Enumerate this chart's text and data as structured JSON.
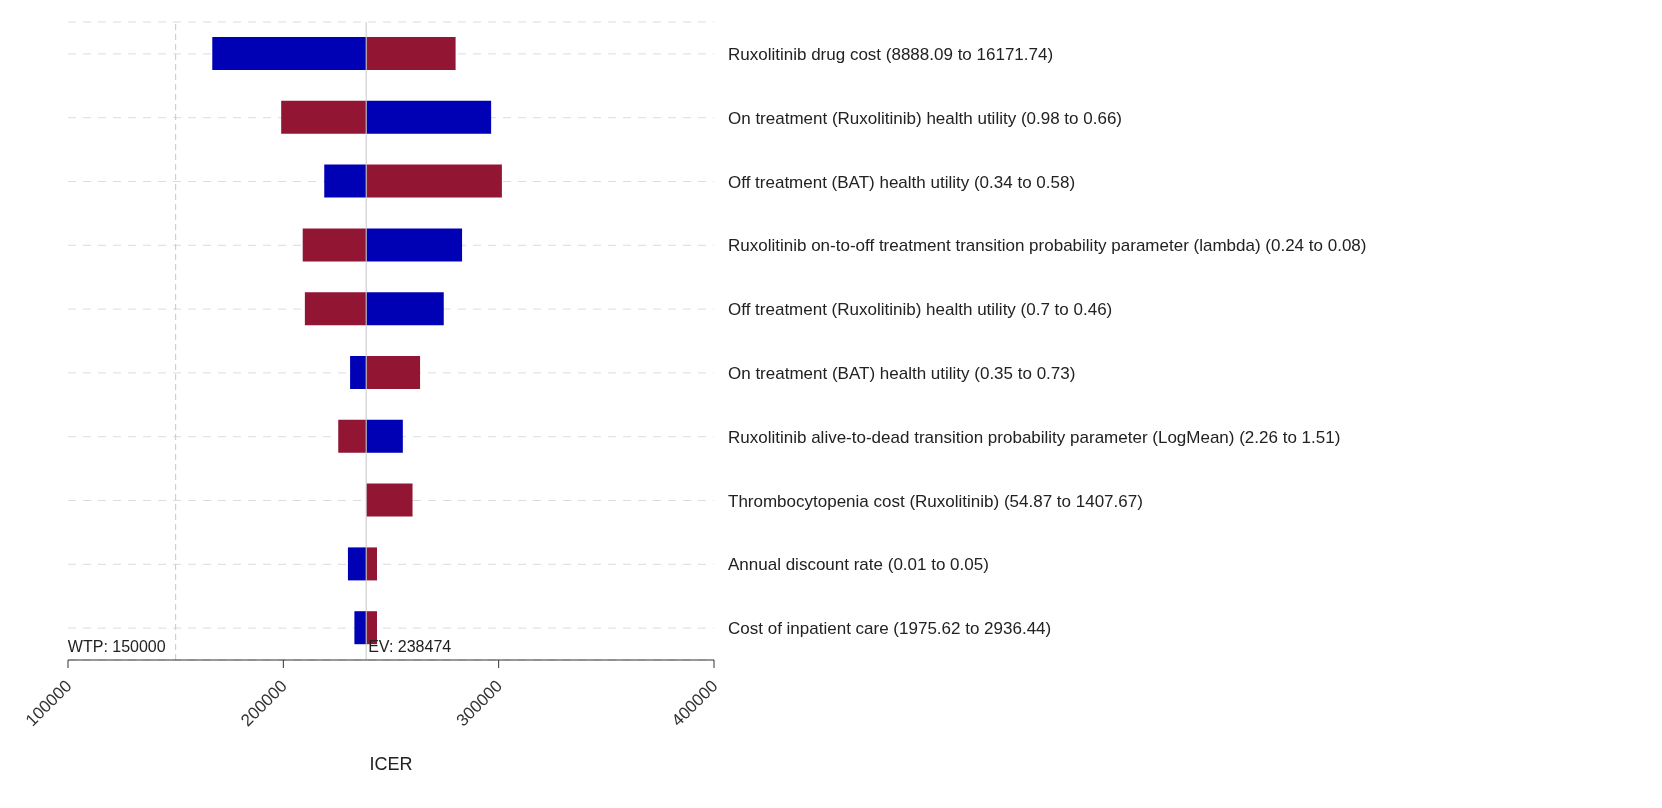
{
  "chart_data": {
    "type": "bar",
    "orientation": "horizontal",
    "xlabel": "ICER",
    "categories": [
      "Ruxolitinib drug cost (8888.09 to 16171.74)",
      "On treatment (Ruxolitinib) health utility (0.98 to 0.66)",
      "Off treatment (BAT) health utility (0.34 to 0.58)",
      "Ruxolitinib on-to-off treatment transition probability parameter (lambda) (0.24 to 0.08)",
      "Off treatment (Ruxolitinib) health utility (0.7 to 0.46)",
      "On treatment (BAT) health utility (0.35 to 0.73)",
      "Ruxolitinib alive-to-dead transition probability parameter (LogMean) (2.26 to 1.51)",
      "Thrombocytopenia cost (Ruxolitinib) (54.87 to 1407.67)",
      "Annual discount rate (0.01 to 0.05)",
      "Cost of inpatient care (1975.62 to 2936.44)"
    ],
    "series": [
      {
        "color": "#0000b4",
        "base": [
          167000,
          238500,
          219000,
          238500,
          238500,
          231000,
          238500,
          null,
          230000,
          233000
        ],
        "values": [
          71500,
          58000,
          19500,
          44500,
          36000,
          7500,
          17000,
          null,
          8500,
          5500
        ]
      },
      {
        "color": "#921634",
        "base": [
          238500,
          199000,
          238500,
          209000,
          210000,
          238500,
          225500,
          238500,
          238500,
          238500
        ],
        "values": [
          41500,
          39500,
          63000,
          29500,
          28500,
          25000,
          13000,
          21500,
          5000,
          5000
        ]
      }
    ],
    "xlim": [
      100000,
      400000
    ],
    "xticks": [
      100000,
      200000,
      300000,
      400000
    ],
    "ref_lines": [
      {
        "axis": "x",
        "value": 150000,
        "label": "WTP: 150000",
        "color": "#c8c8c8",
        "line_style": "dashed"
      },
      {
        "axis": "x",
        "value": 238474,
        "label": "EV: 238474",
        "color": "#c8c8c8",
        "line_style": "solid"
      }
    ],
    "grid": "y",
    "legend": false
  }
}
